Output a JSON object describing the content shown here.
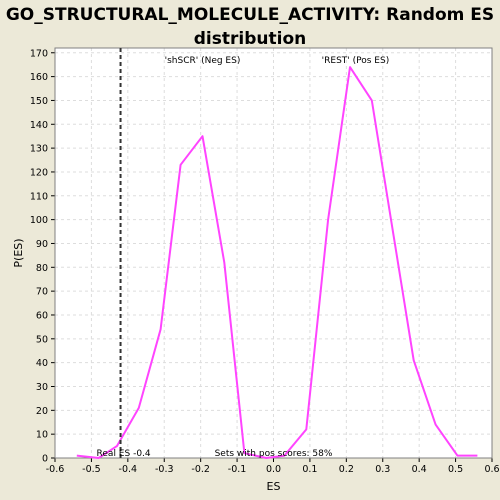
{
  "chart_data": {
    "type": "line",
    "title_line1": "GO_STRUCTURAL_MOLECULE_ACTIVITY: Random ES",
    "title_line2": "distribution",
    "xlabel": "ES",
    "ylabel": "P(ES)",
    "xlim": [
      -0.6,
      0.6
    ],
    "ylim": [
      0,
      172
    ],
    "x_ticks": [
      -0.6,
      -0.5,
      -0.4,
      -0.3,
      -0.2,
      -0.1,
      0.0,
      0.1,
      0.2,
      0.3,
      0.4,
      0.5,
      0.6
    ],
    "x_tick_labels": [
      "-0.6",
      "-0.5",
      "-0.4",
      "-0.3",
      "-0.2",
      "-0.1",
      "0.0",
      "0.1",
      "0.2",
      "0.3",
      "0.4",
      "0.5",
      "0.6"
    ],
    "y_ticks": [
      0,
      10,
      20,
      30,
      40,
      50,
      60,
      70,
      80,
      90,
      100,
      110,
      120,
      130,
      140,
      150,
      160,
      170
    ],
    "y_tick_labels": [
      "0",
      "10",
      "20",
      "30",
      "40",
      "50",
      "60",
      "70",
      "80",
      "90",
      "100",
      "110",
      "120",
      "130",
      "140",
      "150",
      "160",
      "170"
    ],
    "grid": true,
    "series": [
      {
        "color": "#ff44ff",
        "x": [
          -0.54,
          -0.48,
          -0.43,
          -0.37,
          -0.31,
          -0.255,
          -0.195,
          -0.135,
          -0.08,
          -0.02,
          0.03,
          0.09,
          0.15,
          0.21,
          0.27,
          0.33,
          0.385,
          0.445,
          0.505,
          0.56
        ],
        "y": [
          1,
          0,
          5,
          21,
          54,
          123,
          135,
          82,
          2,
          0,
          1,
          12,
          100,
          164,
          150,
          93,
          41,
          14,
          1,
          1
        ]
      }
    ],
    "real_es": -0.42,
    "annotations": {
      "neg_label": "'shSCR' (Neg ES)",
      "neg_color": "#3333cc",
      "pos_label": "'REST' (Pos ES)",
      "pos_color": "#dd2222",
      "real_es_label": "Real ES -0.4",
      "pos_scores_label": "Sets with pos scores: 58%"
    }
  }
}
